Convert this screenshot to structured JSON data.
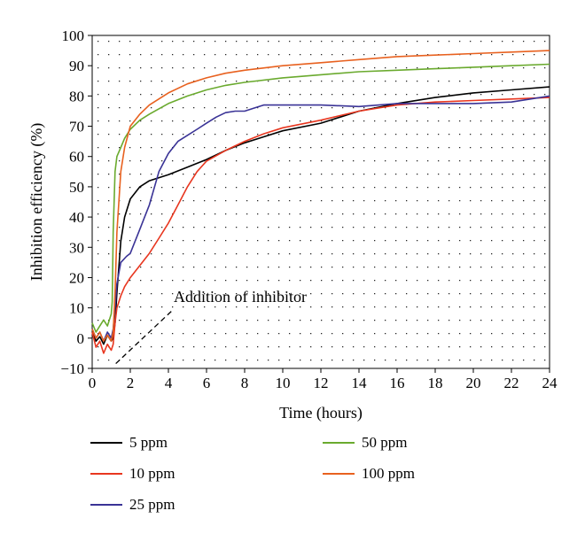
{
  "chart_data": {
    "type": "line",
    "title": "",
    "xlabel": "Time (hours)",
    "ylabel": "Inhibition efficiency (%)",
    "xlim": [
      0,
      24
    ],
    "ylim": [
      -10,
      100
    ],
    "xticks": [
      "0",
      "2",
      "4",
      "6",
      "8",
      "10",
      "12",
      "14",
      "16",
      "18",
      "20",
      "22",
      "24"
    ],
    "yticks": [
      "−10",
      "0",
      "10",
      "20",
      "30",
      "40",
      "50",
      "60",
      "70",
      "80",
      "90",
      "100"
    ],
    "grid": "dotted",
    "legend_position": "bottom",
    "annotation": {
      "text": "Addition of inhibitor",
      "points_to": [
        1.1,
        -9
      ]
    },
    "series": [
      {
        "name": "5 ppm",
        "color": "#000000",
        "points": [
          [
            0,
            2
          ],
          [
            0.2,
            -1
          ],
          [
            0.4,
            0.5
          ],
          [
            0.6,
            -2
          ],
          [
            0.8,
            1
          ],
          [
            1.0,
            -1
          ],
          [
            1.1,
            0
          ],
          [
            1.2,
            5
          ],
          [
            1.3,
            15
          ],
          [
            1.5,
            32
          ],
          [
            1.7,
            40
          ],
          [
            2.0,
            46
          ],
          [
            2.5,
            50
          ],
          [
            3.0,
            52
          ],
          [
            4.0,
            54
          ],
          [
            5.0,
            56.5
          ],
          [
            6.0,
            59
          ],
          [
            7.0,
            62
          ],
          [
            8.0,
            64.5
          ],
          [
            9.0,
            66.5
          ],
          [
            10.0,
            68.5
          ],
          [
            12.0,
            71
          ],
          [
            13.0,
            73
          ],
          [
            14.0,
            75
          ],
          [
            16.0,
            77.5
          ],
          [
            18.0,
            79.5
          ],
          [
            20.0,
            81
          ],
          [
            22.0,
            82
          ],
          [
            24.0,
            83
          ]
        ]
      },
      {
        "name": "10 ppm",
        "color": "#e8361f",
        "points": [
          [
            0,
            2
          ],
          [
            0.2,
            -3
          ],
          [
            0.4,
            -1
          ],
          [
            0.6,
            -5
          ],
          [
            0.8,
            -2
          ],
          [
            1.0,
            -4
          ],
          [
            1.1,
            -2
          ],
          [
            1.2,
            5
          ],
          [
            1.3,
            10
          ],
          [
            1.5,
            14
          ],
          [
            1.7,
            17
          ],
          [
            2.0,
            20
          ],
          [
            2.5,
            24
          ],
          [
            3.0,
            28
          ],
          [
            3.5,
            33
          ],
          [
            4.0,
            38
          ],
          [
            4.5,
            44
          ],
          [
            5.0,
            50
          ],
          [
            5.5,
            55
          ],
          [
            6.0,
            58.5
          ],
          [
            7.0,
            62
          ],
          [
            8.0,
            65
          ],
          [
            9.0,
            67.5
          ],
          [
            10.0,
            69.5
          ],
          [
            12.0,
            72
          ],
          [
            14.0,
            75
          ],
          [
            16.0,
            77
          ],
          [
            18.0,
            78
          ],
          [
            20.0,
            78.5
          ],
          [
            22.0,
            79
          ],
          [
            24.0,
            79.5
          ]
        ]
      },
      {
        "name": "25 ppm",
        "color": "#3a3396",
        "points": [
          [
            0,
            3
          ],
          [
            0.2,
            0
          ],
          [
            0.4,
            2
          ],
          [
            0.6,
            -1
          ],
          [
            0.8,
            2
          ],
          [
            1.0,
            0
          ],
          [
            1.1,
            3
          ],
          [
            1.2,
            10
          ],
          [
            1.3,
            18
          ],
          [
            1.5,
            25
          ],
          [
            1.8,
            27
          ],
          [
            2.0,
            28
          ],
          [
            2.5,
            36
          ],
          [
            3.0,
            44
          ],
          [
            3.5,
            55
          ],
          [
            4.0,
            61
          ],
          [
            4.5,
            65
          ],
          [
            5.0,
            67
          ],
          [
            5.5,
            69
          ],
          [
            6.0,
            71
          ],
          [
            6.5,
            73
          ],
          [
            7.0,
            74.5
          ],
          [
            7.5,
            75
          ],
          [
            8.0,
            75
          ],
          [
            8.5,
            76
          ],
          [
            9.0,
            77
          ],
          [
            10.0,
            77
          ],
          [
            12.0,
            77
          ],
          [
            14.0,
            76.5
          ],
          [
            16.0,
            77.5
          ],
          [
            18.0,
            77.5
          ],
          [
            20.0,
            77.5
          ],
          [
            22.0,
            78
          ],
          [
            24.0,
            80
          ]
        ]
      },
      {
        "name": "50 ppm",
        "color": "#6aaa2e",
        "points": [
          [
            0,
            5
          ],
          [
            0.2,
            2
          ],
          [
            0.4,
            4
          ],
          [
            0.6,
            6
          ],
          [
            0.8,
            4
          ],
          [
            1.0,
            8
          ],
          [
            1.05,
            12
          ],
          [
            1.1,
            35
          ],
          [
            1.2,
            55
          ],
          [
            1.3,
            60
          ],
          [
            1.5,
            63
          ],
          [
            1.7,
            66
          ],
          [
            2.0,
            69
          ],
          [
            2.5,
            72
          ],
          [
            3.0,
            74
          ],
          [
            4.0,
            77.5
          ],
          [
            5.0,
            80
          ],
          [
            6.0,
            82
          ],
          [
            7.0,
            83.5
          ],
          [
            8.0,
            84.5
          ],
          [
            10.0,
            86
          ],
          [
            12.0,
            87
          ],
          [
            14.0,
            88
          ],
          [
            16.0,
            88.5
          ],
          [
            18.0,
            89
          ],
          [
            20.0,
            89.5
          ],
          [
            22.0,
            90
          ],
          [
            24.0,
            90.5
          ]
        ]
      },
      {
        "name": "100 ppm",
        "color": "#e8611f",
        "points": [
          [
            0,
            3
          ],
          [
            0.2,
            0
          ],
          [
            0.4,
            2
          ],
          [
            0.6,
            -1
          ],
          [
            0.8,
            1
          ],
          [
            1.0,
            -1
          ],
          [
            1.1,
            2
          ],
          [
            1.2,
            15
          ],
          [
            1.3,
            35
          ],
          [
            1.5,
            55
          ],
          [
            1.7,
            63
          ],
          [
            2.0,
            70
          ],
          [
            2.5,
            74
          ],
          [
            3.0,
            77
          ],
          [
            4.0,
            81
          ],
          [
            5.0,
            84
          ],
          [
            6.0,
            86
          ],
          [
            7.0,
            87.5
          ],
          [
            8.0,
            88.5
          ],
          [
            10.0,
            90
          ],
          [
            12.0,
            91
          ],
          [
            14.0,
            92
          ],
          [
            16.0,
            93
          ],
          [
            18.0,
            93.5
          ],
          [
            20.0,
            94
          ],
          [
            22.0,
            94.5
          ],
          [
            24.0,
            95
          ]
        ]
      }
    ]
  }
}
